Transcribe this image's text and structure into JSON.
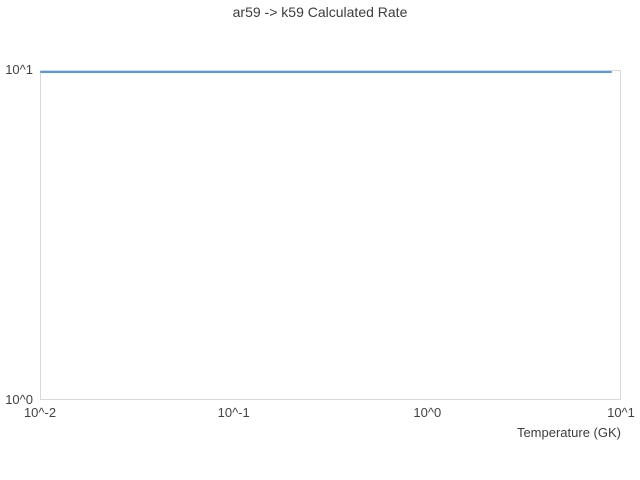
{
  "title": "ar59 -> k59 Calculated Rate",
  "chart_data": {
    "type": "line",
    "title": "ar59 -> k59 Calculated Rate",
    "xlabel": "Temperature (GK)",
    "ylabel": "",
    "x_scale": "log",
    "y_scale": "log",
    "xlim": [
      0.01,
      10
    ],
    "ylim": [
      1,
      10
    ],
    "grid": false,
    "legend_position": "none",
    "x_ticks": [
      {
        "label": "10^-2",
        "value": 0.01
      },
      {
        "label": "10^-1",
        "value": 0.1
      },
      {
        "label": "10^0",
        "value": 1
      },
      {
        "label": "10^1",
        "value": 10
      }
    ],
    "y_ticks": [
      {
        "label": "10^0",
        "value": 1
      },
      {
        "label": "10^1",
        "value": 10
      }
    ],
    "series": [
      {
        "name": "Calculated Rate",
        "color": "#4f9be8",
        "x": [
          0.01,
          0.1,
          1.0,
          9.0
        ],
        "y": [
          9.87,
          9.87,
          9.87,
          9.87
        ]
      }
    ]
  },
  "colors": {
    "plot_border": "#d9d9d9",
    "text": "#404040",
    "background": "#ffffff"
  }
}
